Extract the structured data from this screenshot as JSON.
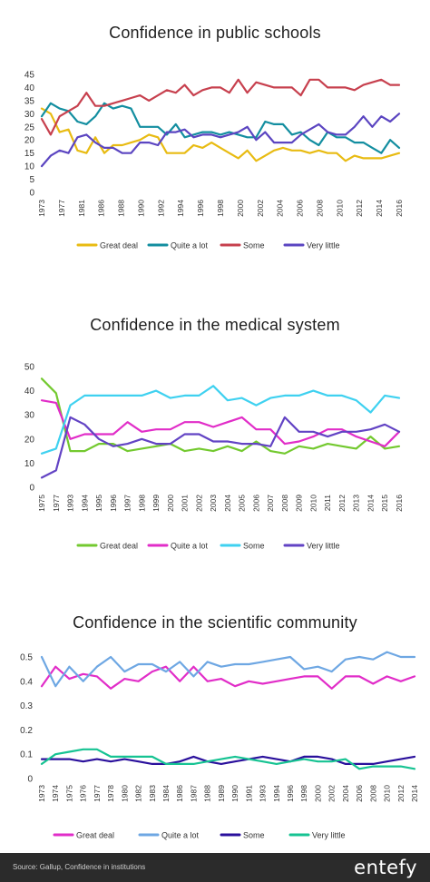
{
  "chart_data": [
    {
      "type": "line",
      "title": "Confidence in public schools",
      "ylim": [
        0,
        45
      ],
      "yticks": [
        0,
        5,
        10,
        15,
        20,
        25,
        30,
        35,
        40,
        45
      ],
      "x_labels": [
        "1973",
        "1977",
        "1981",
        "1986",
        "1988",
        "1990",
        "1992",
        "1994",
        "1996",
        "1998",
        "2000",
        "2002",
        "2004",
        "2006",
        "2008",
        "2010",
        "2012",
        "2014",
        "2016"
      ],
      "x": [
        "1973",
        "1974",
        "1975",
        "1976",
        "1977",
        "1978",
        "1980",
        "1983",
        "1984",
        "1985",
        "1986",
        "1987",
        "1988",
        "1989",
        "1990",
        "1991",
        "1993",
        "1994",
        "1995",
        "1996",
        "1997",
        "1998",
        "1999",
        "2000",
        "2001",
        "2002",
        "2003",
        "2004",
        "2005",
        "2006",
        "2007",
        "2008",
        "2009",
        "2010",
        "2011",
        "2012",
        "2013",
        "2014",
        "2015",
        "2016",
        "2017"
      ],
      "series": [
        {
          "name": "Great deal",
          "color": "#e8bb12",
          "values": [
            32,
            30,
            23,
            24,
            16,
            15,
            21,
            15,
            18,
            18,
            19,
            20,
            22,
            21,
            15,
            15,
            15,
            18,
            17,
            19,
            17,
            15,
            13,
            16,
            12,
            14,
            16,
            17,
            16,
            16,
            15,
            16,
            15,
            15,
            12,
            14,
            13,
            13,
            13,
            14,
            15
          ]
        },
        {
          "name": "Quite a lot",
          "color": "#138ea0",
          "values": [
            29,
            34,
            32,
            31,
            27,
            26,
            29,
            34,
            32,
            33,
            32,
            25,
            25,
            25,
            22,
            26,
            21,
            22,
            23,
            23,
            22,
            23,
            22,
            21,
            21,
            27,
            26,
            26,
            22,
            23,
            20,
            18,
            23,
            21,
            21,
            19,
            19,
            17,
            15,
            20,
            17
          ]
        },
        {
          "name": "Some",
          "color": "#c7404e",
          "values": [
            28,
            22,
            29,
            31,
            33,
            38,
            33,
            33,
            34,
            35,
            36,
            37,
            35,
            37,
            39,
            38,
            41,
            37,
            39,
            40,
            40,
            38,
            43,
            38,
            42,
            41,
            40,
            40,
            40,
            37,
            43,
            43,
            40,
            40,
            40,
            39,
            41,
            42,
            43,
            41,
            41
          ]
        },
        {
          "name": "Very little",
          "color": "#5b45c1",
          "values": [
            10,
            14,
            16,
            15,
            21,
            22,
            19,
            17,
            17,
            15,
            15,
            19,
            19,
            18,
            23,
            23,
            24,
            21,
            22,
            22,
            21,
            22,
            23,
            25,
            20,
            23,
            19,
            19,
            19,
            22,
            24,
            26,
            23,
            22,
            22,
            25,
            29,
            25,
            29,
            27,
            30
          ]
        }
      ]
    },
    {
      "type": "line",
      "title": "Confidence in the medical system",
      "ylim": [
        0,
        50
      ],
      "yticks": [
        0,
        10,
        20,
        30,
        40,
        50
      ],
      "x_labels": [
        "1975",
        "1977",
        "1993",
        "1994",
        "1995",
        "1996",
        "1997",
        "1998",
        "1999",
        "2000",
        "2001",
        "2002",
        "2003",
        "2004",
        "2005",
        "2006",
        "2007",
        "2008",
        "2009",
        "2010",
        "2011",
        "2012",
        "2013",
        "2014",
        "2015",
        "2016"
      ],
      "x": [
        "1975",
        "1977",
        "1993",
        "1994",
        "1995",
        "1996",
        "1997",
        "1998",
        "1999",
        "2000",
        "2001",
        "2002",
        "2003",
        "2004",
        "2005",
        "2006",
        "2007",
        "2008",
        "2009",
        "2010",
        "2011",
        "2012",
        "2013",
        "2014",
        "2015",
        "2016"
      ],
      "series": [
        {
          "name": "Great deal",
          "color": "#73c92f",
          "values": [
            45,
            39,
            15,
            15,
            18,
            18,
            15,
            16,
            17,
            18,
            15,
            16,
            15,
            17,
            15,
            19,
            15,
            14,
            17,
            16,
            18,
            17,
            16,
            21,
            16,
            17
          ]
        },
        {
          "name": "Quite a lot",
          "color": "#e12dc8",
          "values": [
            36,
            35,
            20,
            22,
            22,
            22,
            27,
            23,
            24,
            24,
            27,
            27,
            25,
            27,
            29,
            24,
            24,
            18,
            19,
            21,
            24,
            24,
            21,
            19,
            17,
            23
          ]
        },
        {
          "name": "Some",
          "color": "#3fd1f0",
          "values": [
            14,
            16,
            34,
            38,
            38,
            38,
            38,
            38,
            40,
            37,
            38,
            38,
            42,
            36,
            37,
            34,
            37,
            38,
            38,
            40,
            38,
            38,
            36,
            31,
            38,
            37
          ]
        },
        {
          "name": "Very little",
          "color": "#6243c4",
          "values": [
            4,
            7,
            29,
            26,
            20,
            17,
            18,
            20,
            18,
            18,
            22,
            22,
            19,
            19,
            18,
            18,
            17,
            29,
            23,
            23,
            21,
            23,
            23,
            24,
            26,
            23
          ]
        }
      ]
    },
    {
      "type": "line",
      "title": "Confidence in the scientific community",
      "ylim": [
        0,
        0.5
      ],
      "yticks": [
        0,
        0.1,
        0.2,
        0.3,
        0.4,
        0.5
      ],
      "x_labels": [
        "1973",
        "1974",
        "1975",
        "1976",
        "1977",
        "1978",
        "1980",
        "1982",
        "1983",
        "1984",
        "1986",
        "1987",
        "1988",
        "1989",
        "1990",
        "1991",
        "1993",
        "1994",
        "1996",
        "1998",
        "2000",
        "2002",
        "2004",
        "2006",
        "2008",
        "2010",
        "2012",
        "2014"
      ],
      "x": [
        "1973",
        "1974",
        "1975",
        "1976",
        "1977",
        "1978",
        "1980",
        "1982",
        "1983",
        "1984",
        "1986",
        "1987",
        "1988",
        "1989",
        "1990",
        "1991",
        "1993",
        "1994",
        "1996",
        "1998",
        "2000",
        "2002",
        "2004",
        "2006",
        "2008",
        "2010",
        "2012",
        "2014"
      ],
      "series": [
        {
          "name": "Great deal",
          "color": "#e12dc8",
          "values": [
            0.38,
            0.46,
            0.41,
            0.43,
            0.42,
            0.37,
            0.41,
            0.4,
            0.44,
            0.46,
            0.4,
            0.46,
            0.4,
            0.41,
            0.38,
            0.4,
            0.39,
            0.4,
            0.41,
            0.42,
            0.42,
            0.37,
            0.42,
            0.42,
            0.39,
            0.42,
            0.4,
            0.42
          ]
        },
        {
          "name": "Quite a lot",
          "color": "#6ea7e3",
          "values": [
            0.5,
            0.38,
            0.46,
            0.4,
            0.46,
            0.5,
            0.44,
            0.47,
            0.47,
            0.44,
            0.48,
            0.42,
            0.48,
            0.46,
            0.47,
            0.47,
            0.48,
            0.49,
            0.5,
            0.45,
            0.46,
            0.44,
            0.49,
            0.5,
            0.49,
            0.52,
            0.5,
            0.5
          ]
        },
        {
          "name": "Some",
          "color": "#2a109c",
          "values": [
            0.08,
            0.08,
            0.08,
            0.07,
            0.08,
            0.07,
            0.08,
            0.07,
            0.06,
            0.06,
            0.07,
            0.09,
            0.07,
            0.06,
            0.07,
            0.08,
            0.09,
            0.08,
            0.07,
            0.09,
            0.09,
            0.08,
            0.06,
            0.06,
            0.06,
            0.07,
            0.08,
            0.09
          ]
        },
        {
          "name": "Very little",
          "color": "#16c392",
          "values": [
            0.06,
            0.1,
            0.11,
            0.12,
            0.12,
            0.09,
            0.09,
            0.09,
            0.09,
            0.06,
            0.06,
            0.06,
            0.07,
            0.08,
            0.09,
            0.08,
            0.07,
            0.06,
            0.07,
            0.08,
            0.07,
            0.07,
            0.08,
            0.04,
            0.05,
            0.05,
            0.05,
            0.04
          ]
        }
      ]
    }
  ],
  "footer": {
    "source": "Source: Gallup, Confidence in institutions",
    "brand": "entefy"
  }
}
